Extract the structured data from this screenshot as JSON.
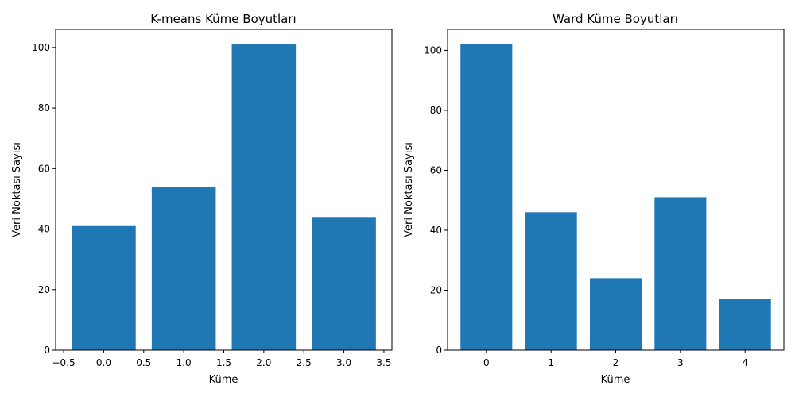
{
  "bar_color": "#1f77b4",
  "chart_data": [
    {
      "type": "bar",
      "title": "K-means Küme Boyutları",
      "xlabel": "Küme",
      "ylabel": "Veri Noktası Sayısı",
      "categories": [
        0,
        1,
        2,
        3
      ],
      "values": [
        41,
        54,
        101,
        44
      ],
      "xlim": [
        -0.6,
        3.6
      ],
      "ylim": [
        0,
        106
      ],
      "xticks": [
        -0.5,
        0.0,
        0.5,
        1.0,
        1.5,
        2.0,
        2.5,
        3.0,
        3.5
      ],
      "xtick_labels": [
        "−0.5",
        "0.0",
        "0.5",
        "1.0",
        "1.5",
        "2.0",
        "2.5",
        "3.0",
        "3.5"
      ],
      "yticks": [
        0,
        20,
        40,
        60,
        80,
        100
      ],
      "ytick_labels": [
        "0",
        "20",
        "40",
        "60",
        "80",
        "100"
      ],
      "grid": false
    },
    {
      "type": "bar",
      "title": "Ward Küme Boyutları",
      "xlabel": "Küme",
      "ylabel": "Veri Noktası Sayısı",
      "categories": [
        0,
        1,
        2,
        3,
        4
      ],
      "values": [
        102,
        46,
        24,
        51,
        17
      ],
      "xlim": [
        -0.6,
        4.6
      ],
      "ylim": [
        0,
        107
      ],
      "xticks": [
        0,
        1,
        2,
        3,
        4
      ],
      "xtick_labels": [
        "0",
        "1",
        "2",
        "3",
        "4"
      ],
      "yticks": [
        0,
        20,
        40,
        60,
        80,
        100
      ],
      "ytick_labels": [
        "0",
        "20",
        "40",
        "60",
        "80",
        "100"
      ],
      "grid": false
    }
  ]
}
